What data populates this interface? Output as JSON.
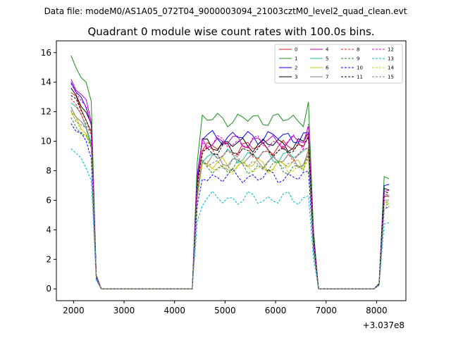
{
  "figure": {
    "suptitle": "Data file: modeM0/AS1A05_072T04_9000003094_21003cztM0_level2_quad_clean.evt"
  },
  "chart_data": {
    "type": "line",
    "title": "Quadrant 0 module wise count rates with 100.0s bins.",
    "xlabel": "",
    "ylabel": "",
    "x_offset_label": "+3.037e8",
    "xlim": [
      1660,
      8580
    ],
    "ylim": [
      -0.8,
      16.8
    ],
    "xticks": [
      2000,
      3000,
      4000,
      5000,
      6000,
      7000,
      8000
    ],
    "xtick_labels": [
      "2000",
      "3000",
      "4000",
      "5000",
      "6000",
      "7000",
      "8000"
    ],
    "yticks": [
      0,
      2,
      4,
      6,
      8,
      10,
      12,
      14,
      16
    ],
    "ytick_labels": [
      "0",
      "2",
      "4",
      "6",
      "8",
      "10",
      "12",
      "14",
      "16"
    ],
    "grid": false,
    "legend_position": "top-right",
    "legend_columns": 4,
    "segments": [
      {
        "start": 1950,
        "count": 7,
        "step": 100,
        "shape": [
          1.0,
          0.96,
          0.92,
          0.88,
          0.8,
          0.06,
          0.0
        ]
      },
      {
        "start": 2550,
        "count": 19,
        "step": 100,
        "zero": true
      },
      {
        "start": 4350,
        "count": 1,
        "step": 100,
        "zero": true
      },
      {
        "start": 4450,
        "count": 23,
        "step": 100,
        "plateau": true,
        "ramp_first": 0.75,
        "ramp_last": 0.6
      },
      {
        "start": 6750,
        "count": 1,
        "step": 100,
        "drop": 0.35
      },
      {
        "start": 6850,
        "count": 12,
        "step": 100,
        "zero": true
      },
      {
        "start": 8050,
        "count": 3,
        "step": 100,
        "recover": [
          0.05,
          0.72,
          0.72
        ]
      }
    ],
    "series": [
      {
        "name": "0",
        "color": "#d62020",
        "dash": false,
        "first": 13.3,
        "burst_level": 9.6,
        "late_level": 6.3
      },
      {
        "name": "1",
        "color": "#1a8f1a",
        "dash": false,
        "first": 15.8,
        "burst_level": 11.5,
        "late_level": 7.6
      },
      {
        "name": "2",
        "color": "#0000ff",
        "dash": false,
        "first": 14.0,
        "burst_level": 10.3,
        "late_level": 7.0
      },
      {
        "name": "3",
        "color": "#000000",
        "dash": false,
        "first": 13.6,
        "burst_level": 9.8,
        "late_level": 6.8
      },
      {
        "name": "4",
        "color": "#c000c0",
        "dash": false,
        "first": 14.2,
        "burst_level": 10.0,
        "late_level": 6.6
      },
      {
        "name": "5",
        "color": "#18c0a0",
        "dash": false,
        "first": 12.6,
        "burst_level": 9.0,
        "late_level": 6.2
      },
      {
        "name": "6",
        "color": "#c8c800",
        "dash": false,
        "first": 12.0,
        "burst_level": 8.4,
        "late_level": 5.9
      },
      {
        "name": "7",
        "color": "#808080",
        "dash": false,
        "first": 12.3,
        "burst_level": 8.7,
        "late_level": 6.0
      },
      {
        "name": "8",
        "color": "#ff2020",
        "dash": true,
        "first": 12.9,
        "burst_level": 9.2,
        "late_level": 6.3
      },
      {
        "name": "9",
        "color": "#1a8f1a",
        "dash": true,
        "first": 11.6,
        "burst_level": 8.2,
        "late_level": 5.8
      },
      {
        "name": "10",
        "color": "#0000ff",
        "dash": true,
        "first": 11.2,
        "burst_level": 7.6,
        "late_level": 5.4
      },
      {
        "name": "11",
        "color": "#000000",
        "dash": true,
        "first": 13.1,
        "burst_level": 9.4,
        "late_level": 6.5
      },
      {
        "name": "12",
        "color": "#e000e0",
        "dash": true,
        "first": 13.9,
        "burst_level": 9.9,
        "late_level": 6.4
      },
      {
        "name": "13",
        "color": "#00b8c8",
        "dash": true,
        "first": 9.5,
        "burst_level": 6.1,
        "late_level": 4.4
      },
      {
        "name": "14",
        "color": "#c8c800",
        "dash": true,
        "first": 11.9,
        "burst_level": 8.2,
        "late_level": 5.7
      },
      {
        "name": "15",
        "color": "#808080",
        "dash": true,
        "first": 12.1,
        "burst_level": 8.5,
        "late_level": 5.9
      }
    ]
  }
}
